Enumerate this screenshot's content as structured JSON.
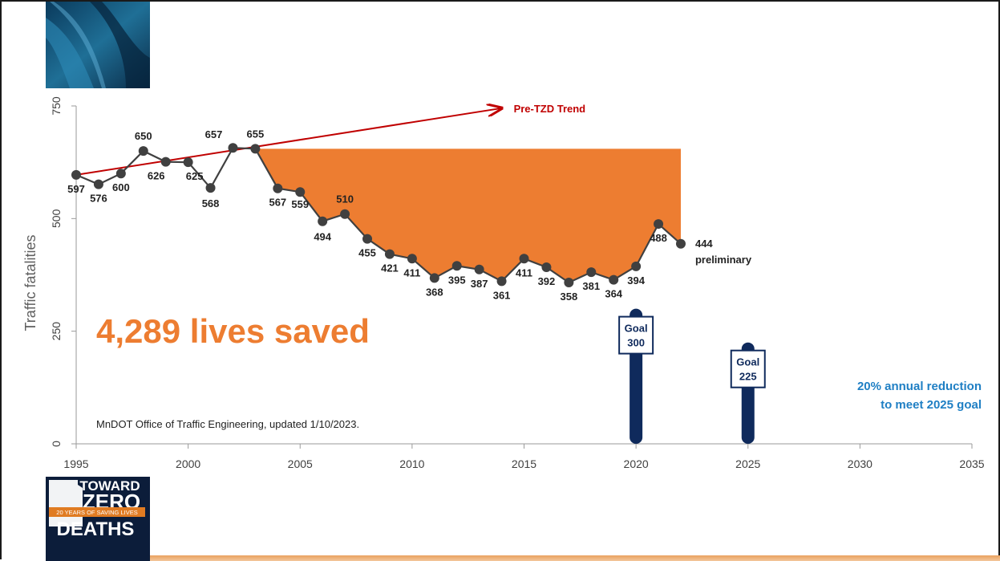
{
  "chart_data": {
    "type": "line",
    "ylabel": "Traffic fatalities",
    "xlim": [
      1995,
      2035
    ],
    "ylim": [
      0,
      750
    ],
    "x_ticks": [
      "1995",
      "2000",
      "2005",
      "2010",
      "2015",
      "2020",
      "2025",
      "2030",
      "2035"
    ],
    "y_ticks": [
      "0",
      "250",
      "500",
      "750"
    ],
    "grid": false,
    "series": [
      {
        "x": [
          1995,
          1996,
          1997,
          1998,
          1999,
          2000,
          2001,
          2002,
          2003,
          2004,
          2005,
          2006,
          2007,
          2008,
          2009,
          2010,
          2011,
          2012,
          2013,
          2014,
          2015,
          2016,
          2017,
          2018,
          2019,
          2020,
          2021,
          2022
        ],
        "values": [
          597,
          576,
          600,
          650,
          626,
          625,
          568,
          657,
          655,
          567,
          559,
          494,
          510,
          455,
          421,
          411,
          368,
          395,
          387,
          361,
          411,
          392,
          358,
          381,
          364,
          394,
          488,
          444
        ],
        "labels": [
          "597",
          "576",
          "600",
          "650",
          "626",
          "625",
          "568",
          "657",
          "655",
          "567",
          "559",
          "494",
          "510",
          "455",
          "421",
          "411",
          "368",
          "395",
          "387",
          "361",
          "411",
          "392",
          "358",
          "381",
          "364",
          "394",
          "488",
          "444"
        ],
        "color": "#404040"
      }
    ],
    "trend": {
      "label": "Pre-TZD Trend",
      "from": [
        1995,
        597
      ],
      "to": [
        2014,
        745
      ],
      "color": "#c00000"
    },
    "saved_area": {
      "baseline": 655,
      "from_year": 2003,
      "to_year": 2022,
      "color": "#ed7d31"
    },
    "annotations": {
      "last_point_note": "preliminary",
      "lives_saved": "4,289 lives saved",
      "source": "MnDOT Office of Traffic Engineering, updated 1/10/2023.",
      "goal_note_line1": "20% annual reduction",
      "goal_note_line2": "to meet 2025 goal"
    },
    "goals": [
      {
        "year": 2020,
        "value": 300,
        "line1": "Goal",
        "line2": "300"
      },
      {
        "year": 2025,
        "value": 225,
        "line1": "Goal",
        "line2": "225"
      }
    ],
    "colors": {
      "goal_post": "#0f2a5c",
      "goal_note": "#1f7fc4",
      "lives_saved": "#ed7d31"
    }
  },
  "logo": {
    "line1": "TOWARD",
    "line2": "ZERO",
    "ribbon": "20 YEARS OF SAVING LIVES",
    "line3": "DEATHS"
  }
}
